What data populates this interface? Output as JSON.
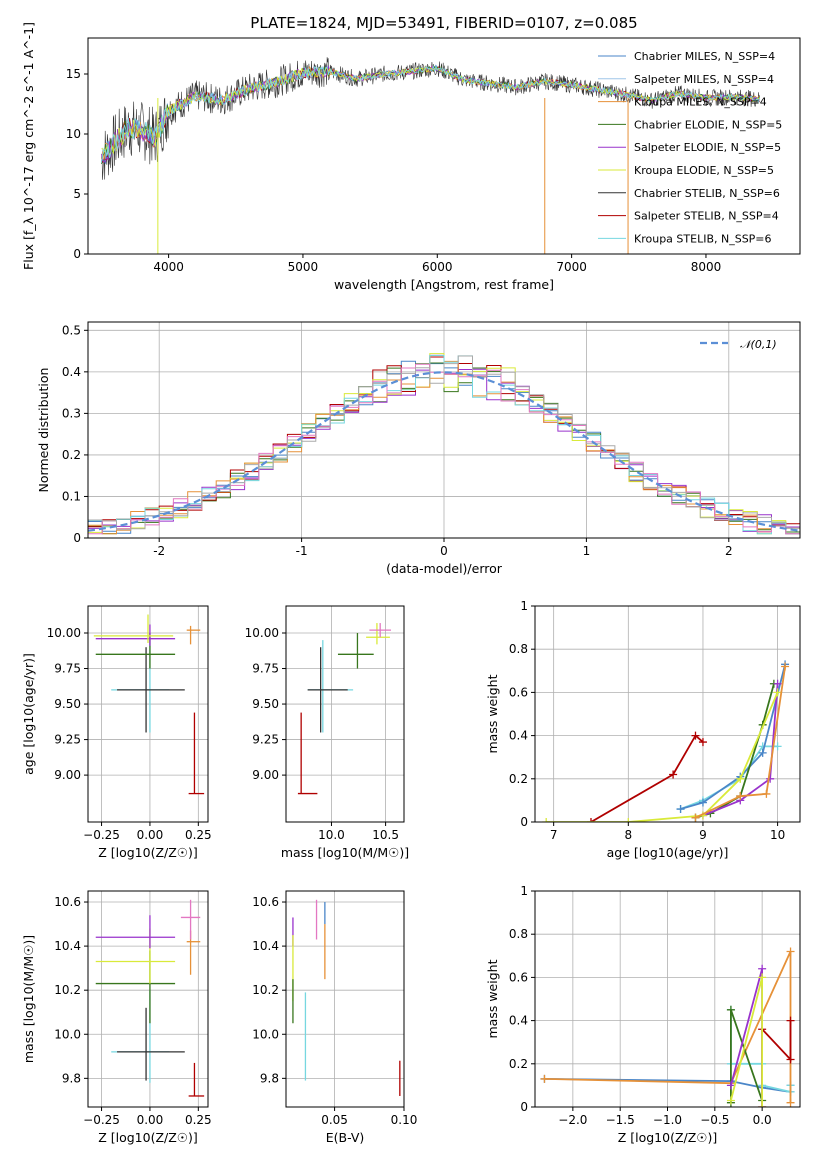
{
  "chart_data": [
    {
      "id": "spectrum",
      "type": "line",
      "title": "PLATE=1824, MJD=53491, FIBERID=0107, z=0.085",
      "xlabel": "wavelength [Angstrom, rest frame]",
      "ylabel": "Flux [f_λ 10^-17 erg cm^-2 s^-1 A^-1]",
      "xlim": [
        3400,
        8700
      ],
      "ylim": [
        0,
        18
      ],
      "xticks": [
        4000,
        5000,
        6000,
        7000,
        8000
      ],
      "yticks": [
        0,
        5,
        10,
        15
      ],
      "grid": false,
      "legend_position": "top-right",
      "x": [
        3500,
        3600,
        3700,
        3800,
        3900,
        4000,
        4200,
        4400,
        4600,
        4800,
        5000,
        5200,
        5400,
        5600,
        5800,
        6000,
        6200,
        6400,
        6600,
        6800,
        7000,
        7200,
        7400,
        7600,
        7800,
        8000,
        8200,
        8400
      ],
      "y": [
        8,
        9.3,
        10.5,
        10.3,
        9.7,
        11.9,
        13.2,
        12.8,
        13.8,
        14.3,
        15.1,
        15.2,
        14.6,
        15.0,
        15.2,
        15.5,
        14.5,
        14.2,
        13.9,
        14.4,
        14.1,
        13.7,
        13.3,
        12.8,
        13.4,
        13.0,
        13.1,
        12.9
      ],
      "series": [
        {
          "name": "Chabrier MILES, N_SSP=4",
          "color": "#4a86c8"
        },
        {
          "name": "Salpeter MILES, N_SSP=4",
          "color": "#9fc5e8"
        },
        {
          "name": "Kroupa MILES, N_SSP=4",
          "color": "#e69138"
        },
        {
          "name": "Chabrier ELODIE, N_SSP=5",
          "color": "#38761d"
        },
        {
          "name": "Salpeter ELODIE, N_SSP=5",
          "color": "#9933cc"
        },
        {
          "name": "Kroupa ELODIE, N_SSP=5",
          "color": "#d9ea3a"
        },
        {
          "name": "Chabrier STELIB, N_SSP=6",
          "color": "#333333"
        },
        {
          "name": "Salpeter STELIB, N_SSP=4",
          "color": "#b00000"
        },
        {
          "name": "Kroupa STELIB, N_SSP=6",
          "color": "#76d7e0"
        }
      ]
    },
    {
      "id": "residuals",
      "type": "line",
      "xlabel": "(data-model)/error",
      "ylabel": "Normed distribution",
      "xlim": [
        -2.5,
        2.5
      ],
      "ylim": [
        0,
        0.52
      ],
      "xticks": [
        -2,
        -1,
        0,
        1,
        2
      ],
      "yticks": [
        0.0,
        0.1,
        0.2,
        0.3,
        0.4,
        0.5
      ],
      "grid": true,
      "legend_position": "top-right",
      "legend": "N(0,1)",
      "bin_width": 0.1,
      "hist_colors": [
        "#4a86c8",
        "#38761d",
        "#9933cc",
        "#b00000",
        "#d9ea3a",
        "#e69138",
        "#76d7e0",
        "#e377c2",
        "#aaaaaa"
      ]
    },
    {
      "id": "age_vs_Z",
      "type": "scatter",
      "xlabel": "Z [log10(Z/Z☉)]",
      "ylabel": "age  [log10(age/yr)]",
      "xlim": [
        -0.32,
        0.3
      ],
      "ylim": [
        8.67,
        10.19
      ],
      "xticks": [
        -0.25,
        0.0,
        0.25
      ],
      "xtick_labels": [
        "−0.25",
        "0.00",
        "0.25"
      ],
      "yticks": [
        9.0,
        9.25,
        9.5,
        9.75,
        10.0
      ],
      "ytick_labels": [
        "9.00",
        "9.25",
        "9.50",
        "9.75",
        "10.00"
      ],
      "grid": true,
      "points": [
        {
          "x": 0.0,
          "y": 9.6,
          "xerr": [
            0.2,
            0.1
          ],
          "yerr": [
            0.3,
            0.35
          ],
          "color": "#76d7e0"
        },
        {
          "x": -0.02,
          "y": 9.6,
          "xerr": [
            0.15,
            0.2
          ],
          "yerr": [
            0.3,
            0.3
          ],
          "color": "#333333"
        },
        {
          "x": 0.0,
          "y": 9.85,
          "xerr": [
            0.28,
            0.13
          ],
          "yerr": [
            0.1,
            0.15
          ],
          "color": "#38761d"
        },
        {
          "x": 0.0,
          "y": 9.96,
          "xerr": [
            0.28,
            0.13
          ],
          "yerr": [
            0.05,
            0.1
          ],
          "color": "#9933cc"
        },
        {
          "x": -0.01,
          "y": 9.98,
          "xerr": [
            0.28,
            0.13
          ],
          "yerr": [
            0.05,
            0.15
          ],
          "color": "#d9ea3a"
        },
        {
          "x": 0.21,
          "y": 10.02,
          "xerr": [
            0.02,
            0.05
          ],
          "yerr": [
            0.1,
            0.03
          ],
          "color": "#e69138"
        },
        {
          "x": 0.23,
          "y": 8.87,
          "xerr": [
            0.03,
            0.05
          ],
          "yerr": [
            0,
            0.57
          ],
          "color": "#b00000"
        }
      ]
    },
    {
      "id": "age_vs_mass",
      "type": "scatter",
      "xlabel": "mass [log10(M/M☉)]",
      "ylabel": "",
      "xlim": [
        9.58,
        10.67
      ],
      "ylim": [
        8.67,
        10.19
      ],
      "xticks": [
        10.0,
        10.5
      ],
      "xtick_labels": [
        "10.0",
        "10.5"
      ],
      "yticks": [
        9.0,
        9.25,
        9.5,
        9.75,
        10.0
      ],
      "ytick_labels": [
        "9.00",
        "9.25",
        "9.50",
        "9.75",
        "10.00"
      ],
      "grid": true,
      "points": [
        {
          "x": 9.92,
          "y": 9.6,
          "xerr": [
            0.14,
            0.28
          ],
          "yerr": [
            0.3,
            0.35
          ],
          "color": "#76d7e0"
        },
        {
          "x": 9.9,
          "y": 9.6,
          "xerr": [
            0.12,
            0.25
          ],
          "yerr": [
            0.3,
            0.3
          ],
          "color": "#333333"
        },
        {
          "x": 10.24,
          "y": 9.85,
          "xerr": [
            0.18,
            0.15
          ],
          "yerr": [
            0.1,
            0.15
          ],
          "color": "#38761d"
        },
        {
          "x": 10.42,
          "y": 9.97,
          "xerr": [
            0.1,
            0.12
          ],
          "yerr": [
            0.05,
            0.1
          ],
          "color": "#d9ea3a"
        },
        {
          "x": 10.45,
          "y": 10.02,
          "xerr": [
            0.1,
            0.1
          ],
          "yerr": [
            0.05,
            0.05
          ],
          "color": "#e377c2"
        },
        {
          "x": 9.72,
          "y": 8.87,
          "xerr": [
            0.03,
            0.15
          ],
          "yerr": [
            0,
            0.57
          ],
          "color": "#b00000"
        }
      ]
    },
    {
      "id": "weight_vs_age",
      "type": "line",
      "xlabel": "age  [log10(age/yr)]",
      "ylabel": "mass weight",
      "xlim": [
        6.75,
        10.3
      ],
      "ylim": [
        0,
        1
      ],
      "xticks": [
        7,
        8,
        9,
        10
      ],
      "yticks": [
        0.0,
        0.2,
        0.4,
        0.6,
        0.8,
        1.0
      ],
      "grid": true,
      "series": [
        {
          "color": "#76d7e0",
          "x": [
            8.7,
            9.0,
            9.5,
            9.8,
            10.0
          ],
          "y": [
            0.06,
            0.1,
            0.2,
            0.35,
            0.35
          ]
        },
        {
          "color": "#4a86c8",
          "x": [
            8.7,
            9.0,
            9.5,
            9.8,
            10.1
          ],
          "y": [
            0.06,
            0.09,
            0.21,
            0.32,
            0.73
          ]
        },
        {
          "color": "#b00000",
          "x": [
            7.5,
            8.6,
            8.9,
            9.0
          ],
          "y": [
            0.0,
            0.22,
            0.4,
            0.37
          ]
        },
        {
          "color": "#38761d",
          "x": [
            8.9,
            9.1,
            9.5,
            9.8,
            9.95
          ],
          "y": [
            0.02,
            0.04,
            0.12,
            0.45,
            0.64
          ]
        },
        {
          "color": "#9933cc",
          "x": [
            9.0,
            9.5,
            9.9,
            10.0
          ],
          "y": [
            0.03,
            0.1,
            0.2,
            0.64
          ]
        },
        {
          "color": "#d9ea3a",
          "x": [
            6.9,
            8.0,
            9.0,
            9.5,
            10.0
          ],
          "y": [
            0.0,
            0.0,
            0.03,
            0.2,
            0.6
          ]
        },
        {
          "color": "#e69138",
          "x": [
            8.9,
            9.5,
            9.85,
            10.1
          ],
          "y": [
            0.02,
            0.12,
            0.13,
            0.72
          ]
        }
      ]
    },
    {
      "id": "mass_vs_Z",
      "type": "scatter",
      "xlabel": "Z [log10(Z/Z☉)]",
      "ylabel": "mass [log10(M/M☉)]",
      "xlim": [
        -0.32,
        0.3
      ],
      "ylim": [
        9.67,
        10.65
      ],
      "xticks": [
        -0.25,
        0.0,
        0.25
      ],
      "xtick_labels": [
        "−0.25",
        "0.00",
        "0.25"
      ],
      "yticks": [
        9.8,
        10.0,
        10.2,
        10.4,
        10.6
      ],
      "ytick_labels": [
        "9.8",
        "10.0",
        "10.2",
        "10.4",
        "10.6"
      ],
      "grid": true,
      "points": [
        {
          "x": 0.0,
          "y": 9.92,
          "xerr": [
            0.2,
            0.1
          ],
          "yerr": [
            0.14,
            0.28
          ],
          "color": "#76d7e0"
        },
        {
          "x": -0.02,
          "y": 9.92,
          "xerr": [
            0.15,
            0.2
          ],
          "yerr": [
            0.13,
            0.2
          ],
          "color": "#333333"
        },
        {
          "x": 0.0,
          "y": 10.23,
          "xerr": [
            0.28,
            0.13
          ],
          "yerr": [
            0.18,
            0.15
          ],
          "color": "#38761d"
        },
        {
          "x": 0.0,
          "y": 10.33,
          "xerr": [
            0.28,
            0.13
          ],
          "yerr": [
            0.1,
            0.15
          ],
          "color": "#d9ea3a"
        },
        {
          "x": 0.0,
          "y": 10.44,
          "xerr": [
            0.28,
            0.13
          ],
          "yerr": [
            0.05,
            0.1
          ],
          "color": "#9933cc"
        },
        {
          "x": 0.21,
          "y": 10.42,
          "xerr": [
            0.02,
            0.05
          ],
          "yerr": [
            0.15,
            0.05
          ],
          "color": "#e69138"
        },
        {
          "x": 0.21,
          "y": 10.53,
          "xerr": [
            0.05,
            0.05
          ],
          "yerr": [
            0.1,
            0.08
          ],
          "color": "#e377c2"
        },
        {
          "x": 0.23,
          "y": 9.72,
          "xerr": [
            0.03,
            0.05
          ],
          "yerr": [
            0,
            0.15
          ],
          "color": "#b00000"
        }
      ]
    },
    {
      "id": "mass_vs_ebv",
      "type": "scatter",
      "xlabel": "E(B-V)",
      "ylabel": "",
      "xlim": [
        0.015,
        0.1
      ],
      "ylim": [
        9.67,
        10.65
      ],
      "xticks": [
        0.05,
        0.1
      ],
      "xtick_labels": [
        "0.05",
        "0.10"
      ],
      "yticks": [
        9.8,
        10.0,
        10.2,
        10.4,
        10.6
      ],
      "ytick_labels": [
        "9.8",
        "10.0",
        "10.2",
        "10.4",
        "10.6"
      ],
      "grid": true,
      "points": [
        {
          "x": 0.02,
          "y": 10.45,
          "xerr": [
            0,
            0
          ],
          "yerr": [
            0.05,
            0.08
          ],
          "color": "#9933cc"
        },
        {
          "x": 0.02,
          "y": 10.25,
          "xerr": [
            0,
            0
          ],
          "yerr": [
            0.1,
            0.2
          ],
          "color": "#d9ea3a"
        },
        {
          "x": 0.02,
          "y": 10.15,
          "xerr": [
            0,
            0
          ],
          "yerr": [
            0.1,
            0.1
          ],
          "color": "#38761d"
        },
        {
          "x": 0.029,
          "y": 9.92,
          "xerr": [
            0,
            0
          ],
          "yerr": [
            0.13,
            0.27
          ],
          "color": "#76d7e0"
        },
        {
          "x": 0.037,
          "y": 10.55,
          "xerr": [
            0,
            0
          ],
          "yerr": [
            0.12,
            0.06
          ],
          "color": "#e377c2"
        },
        {
          "x": 0.043,
          "y": 10.4,
          "xerr": [
            0,
            0
          ],
          "yerr": [
            0.15,
            0.1
          ],
          "color": "#e69138"
        },
        {
          "x": 0.043,
          "y": 10.55,
          "xerr": [
            0,
            0
          ],
          "yerr": [
            0.05,
            0.05
          ],
          "color": "#4a86c8"
        },
        {
          "x": 0.097,
          "y": 9.8,
          "xerr": [
            0,
            0
          ],
          "yerr": [
            0.08,
            0.08
          ],
          "color": "#b00000"
        }
      ]
    },
    {
      "id": "weight_vs_Z",
      "type": "line",
      "xlabel": "Z [log10(Z/Z☉)]",
      "ylabel": "mass weight",
      "xlim": [
        -2.4,
        0.4
      ],
      "ylim": [
        0,
        1
      ],
      "xticks": [
        -2.0,
        -1.5,
        -1.0,
        -0.5,
        0.0
      ],
      "xtick_labels": [
        "−2.0",
        "−1.5",
        "−1.0",
        "−0.5",
        "0.0"
      ],
      "yticks": [
        0.0,
        0.2,
        0.4,
        0.6,
        0.8,
        1.0
      ],
      "grid": true,
      "series": [
        {
          "color": "#4a86c8",
          "x": [
            -2.3,
            -0.33,
            0.0,
            0.3,
            0.3
          ],
          "y": [
            0.13,
            0.12,
            0.09,
            0.07,
            0.1
          ]
        },
        {
          "color": "#76d7e0",
          "x": [
            -0.33,
            -0.33,
            0.0,
            0.0,
            0.3,
            0.3
          ],
          "y": [
            0.45,
            0.2,
            0.2,
            0.1,
            0.07,
            0.1
          ]
        },
        {
          "color": "#e69138",
          "x": [
            -2.3,
            -0.33,
            0.3,
            0.3
          ],
          "y": [
            0.13,
            0.11,
            0.72,
            0.02
          ]
        },
        {
          "color": "#b00000",
          "x": [
            0.0,
            0.0,
            0.3,
            0.3
          ],
          "y": [
            0.0,
            0.36,
            0.22,
            0.4
          ]
        },
        {
          "color": "#38761d",
          "x": [
            -0.33,
            -0.33,
            0.0
          ],
          "y": [
            0.02,
            0.45,
            0.03
          ]
        },
        {
          "color": "#9933cc",
          "x": [
            -0.33,
            0.0,
            0.0
          ],
          "y": [
            0.1,
            0.64,
            0.0
          ]
        },
        {
          "color": "#d9ea3a",
          "x": [
            -0.33,
            0.0,
            0.0
          ],
          "y": [
            0.03,
            0.6,
            0.0
          ]
        }
      ]
    }
  ],
  "legend_residual_label": "𝒩(0,1)"
}
